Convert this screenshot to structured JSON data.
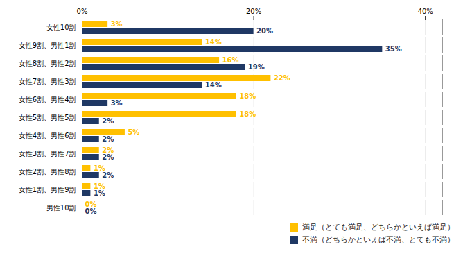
{
  "chart_data": {
    "type": "bar",
    "orientation": "horizontal",
    "categories": [
      "女性10割",
      "女性9割、男性1割",
      "女性8割、男性2割",
      "女性7割、男性3割",
      "女性6割、男性4割",
      "女性5割、男性5割",
      "女性4割、男性6割",
      "女性3割、男性7割",
      "女性2割、男性8割",
      "女性1割、男性9割",
      "男性10割"
    ],
    "series": [
      {
        "name": "満足（とても満足、どちらかといえば満足）",
        "color": "#FFC000",
        "values": [
          3,
          14,
          16,
          22,
          18,
          18,
          5,
          2,
          1,
          1,
          0
        ],
        "value_labels": [
          "3%",
          "14%",
          "16%",
          "22%",
          "18%",
          "18%",
          "5%",
          "2%",
          "1%",
          "1%",
          "0%"
        ]
      },
      {
        "name": "不満（どちらかといえば不満、とても不満）",
        "color": "#1F3864",
        "values": [
          20,
          35,
          19,
          14,
          3,
          2,
          2,
          2,
          2,
          1,
          0
        ],
        "value_labels": [
          "20%",
          "35%",
          "19%",
          "14%",
          "3%",
          "2%",
          "2%",
          "2%",
          "2%",
          "1%",
          "0%"
        ]
      }
    ],
    "xlim": [
      0,
      42
    ],
    "xticks": [
      {
        "value": 0,
        "label": "0%"
      },
      {
        "value": 20,
        "label": "20%"
      },
      {
        "value": 40,
        "label": "40%"
      }
    ],
    "grid": true,
    "legend": "lower right",
    "data_labels": true
  }
}
